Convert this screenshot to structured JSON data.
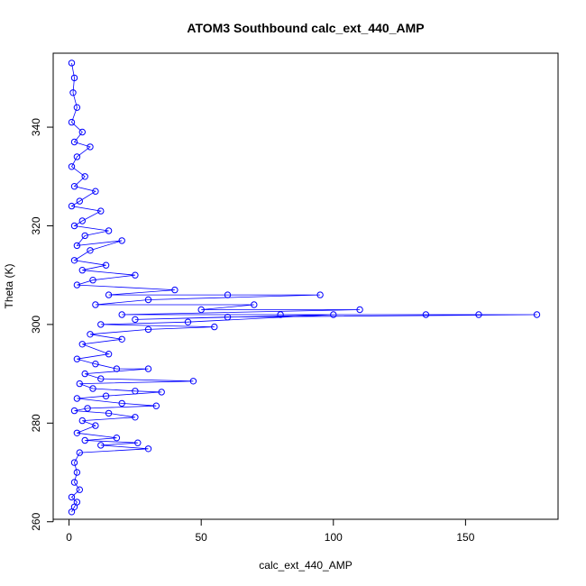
{
  "chart_data": {
    "type": "line",
    "title": "ATOM3 Southbound calc_ext_440_AMP",
    "xlabel": "calc_ext_440_AMP",
    "ylabel": "Theta (K)",
    "xlim": [
      -6,
      185
    ],
    "ylim": [
      260.5,
      355
    ],
    "xticks": [
      0,
      50,
      100,
      150
    ],
    "yticks": [
      260,
      280,
      300,
      320,
      340
    ],
    "grid": false,
    "legend": "none",
    "markers": "open-circle",
    "color": "#0000ff",
    "series": [
      {
        "points": [
          [
            1,
            353
          ],
          [
            2,
            350
          ],
          [
            1.5,
            347
          ],
          [
            3,
            344
          ],
          [
            1,
            341
          ],
          [
            5,
            339
          ],
          [
            2,
            337
          ],
          [
            8,
            336
          ],
          [
            3,
            334
          ],
          [
            1,
            332
          ],
          [
            6,
            330
          ],
          [
            2,
            328
          ],
          [
            10,
            327
          ],
          [
            4,
            325
          ],
          [
            1,
            324
          ],
          [
            12,
            323
          ],
          [
            5,
            321
          ],
          [
            2,
            320
          ],
          [
            15,
            319
          ],
          [
            6,
            318
          ],
          [
            3,
            316
          ],
          [
            20,
            317
          ],
          [
            8,
            315
          ],
          [
            2,
            313
          ],
          [
            14,
            312
          ],
          [
            5,
            311
          ],
          [
            25,
            310
          ],
          [
            9,
            309
          ],
          [
            3,
            308
          ],
          [
            40,
            307
          ],
          [
            15,
            306
          ],
          [
            60,
            306
          ],
          [
            95,
            306
          ],
          [
            30,
            305
          ],
          [
            10,
            304
          ],
          [
            70,
            304
          ],
          [
            50,
            303
          ],
          [
            110,
            303
          ],
          [
            20,
            302
          ],
          [
            80,
            302
          ],
          [
            135,
            302
          ],
          [
            155,
            302
          ],
          [
            177,
            302
          ],
          [
            60,
            301.5
          ],
          [
            25,
            301
          ],
          [
            100,
            302
          ],
          [
            45,
            300.5
          ],
          [
            12,
            300
          ],
          [
            55,
            299.5
          ],
          [
            30,
            299
          ],
          [
            8,
            298
          ],
          [
            20,
            297
          ],
          [
            5,
            296
          ],
          [
            15,
            294
          ],
          [
            3,
            293
          ],
          [
            10,
            292
          ],
          [
            18,
            291
          ],
          [
            30,
            291
          ],
          [
            6,
            290
          ],
          [
            12,
            289
          ],
          [
            47,
            288.5
          ],
          [
            4,
            288
          ],
          [
            9,
            287
          ],
          [
            25,
            286.5
          ],
          [
            35,
            286.3
          ],
          [
            14,
            285.5
          ],
          [
            3,
            285
          ],
          [
            20,
            284
          ],
          [
            33,
            283.5
          ],
          [
            7,
            283
          ],
          [
            2,
            282.5
          ],
          [
            15,
            282
          ],
          [
            25,
            281.2
          ],
          [
            5,
            280.5
          ],
          [
            10,
            279.5
          ],
          [
            3,
            278
          ],
          [
            18,
            277
          ],
          [
            6,
            276.5
          ],
          [
            26,
            276
          ],
          [
            12,
            275.5
          ],
          [
            30,
            274.8
          ],
          [
            4,
            274
          ],
          [
            2,
            272
          ],
          [
            3,
            270
          ],
          [
            2,
            268
          ],
          [
            4,
            266.5
          ],
          [
            1,
            265
          ],
          [
            3,
            264
          ],
          [
            2,
            263
          ],
          [
            1,
            262
          ]
        ]
      }
    ]
  }
}
